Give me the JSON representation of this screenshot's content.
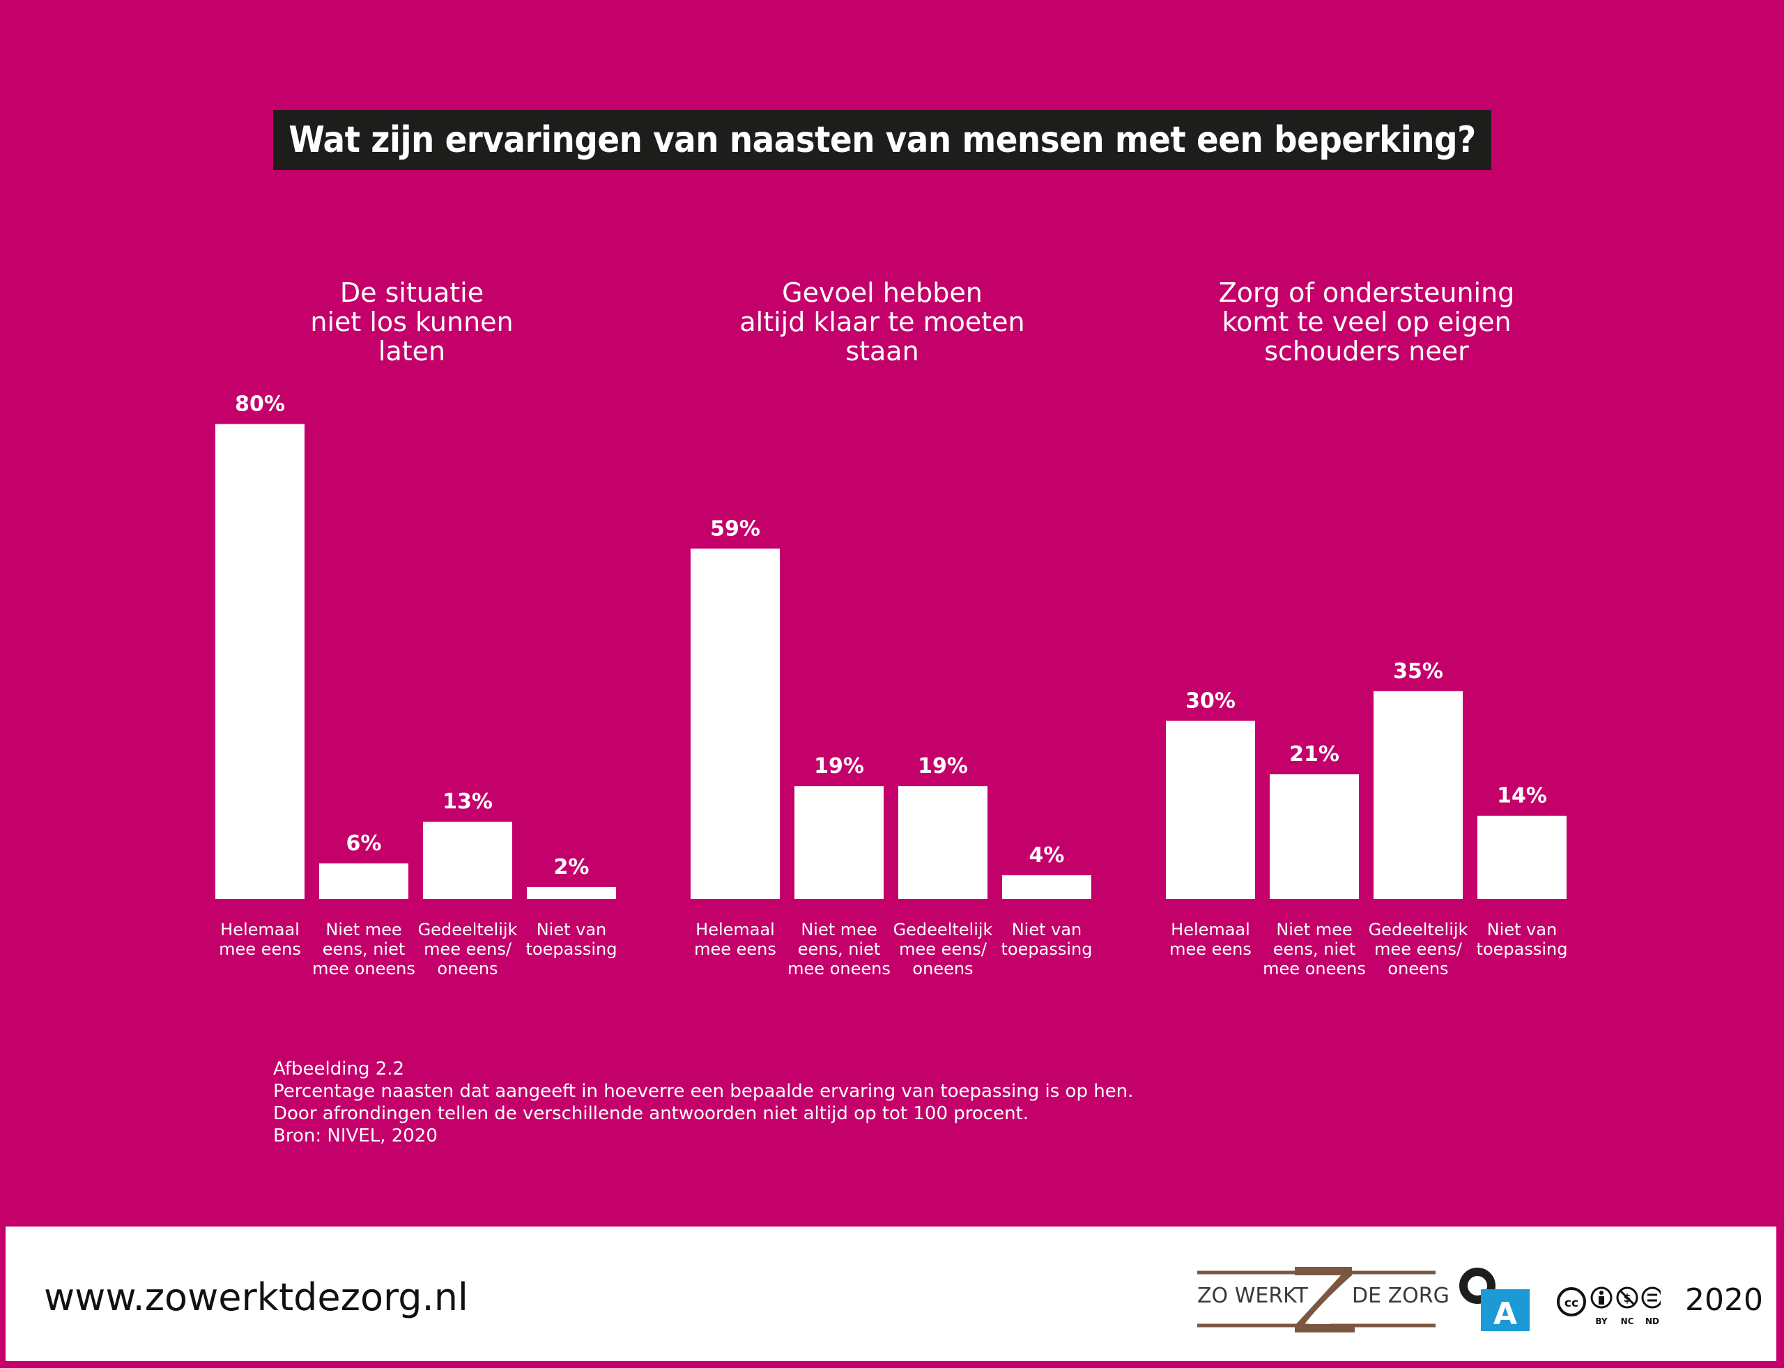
{
  "title": "Wat zijn ervaringen van naasten van mensen met een beperking?",
  "chart_data": [
    {
      "type": "bar",
      "title": [
        "De situatie",
        "niet los kunnen",
        "laten"
      ],
      "categories": [
        [
          "Helemaal",
          "mee eens"
        ],
        [
          "Niet mee",
          "eens, niet",
          "mee oneens"
        ],
        [
          "Gedeeltelijk",
          "mee eens/",
          "oneens"
        ],
        [
          "Niet van",
          "toepassing"
        ]
      ],
      "values": [
        80,
        6,
        13,
        2
      ],
      "labels": [
        "80%",
        "6%",
        "13%",
        "2%"
      ],
      "ylim": [
        0,
        80
      ]
    },
    {
      "type": "bar",
      "title": [
        "Gevoel hebben",
        "altijd klaar te moeten",
        "staan"
      ],
      "categories": [
        [
          "Helemaal",
          "mee eens"
        ],
        [
          "Niet mee",
          "eens, niet",
          "mee oneens"
        ],
        [
          "Gedeeltelijk",
          "mee eens/",
          "oneens"
        ],
        [
          "Niet van",
          "toepassing"
        ]
      ],
      "values": [
        59,
        19,
        19,
        4
      ],
      "labels": [
        "59%",
        "19%",
        "19%",
        "4%"
      ],
      "ylim": [
        0,
        80
      ]
    },
    {
      "type": "bar",
      "title": [
        "Zorg of ondersteuning",
        "komt te veel op eigen",
        "schouders neer"
      ],
      "categories": [
        [
          "Helemaal",
          "mee eens"
        ],
        [
          "Niet mee",
          "eens, niet",
          "mee oneens"
        ],
        [
          "Gedeeltelijk",
          "mee eens/",
          "oneens"
        ],
        [
          "Niet van",
          "toepassing"
        ]
      ],
      "values": [
        30,
        21,
        35,
        14
      ],
      "labels": [
        "30%",
        "21%",
        "35%",
        "14%"
      ],
      "ylim": [
        0,
        80
      ]
    }
  ],
  "caption": {
    "line1": "Afbeelding 2.2",
    "line2": "Percentage naasten dat aangeeft in hoeverre een bepaalde ervaring van toepassing is op hen.",
    "line3": "Door afrondingen tellen de verschillende antwoorden niet altijd op tot 100 procent.",
    "line4": "Bron: NIVEL, 2020"
  },
  "footer": {
    "url": "www.zowerktdezorg.nl",
    "brand_left": "ZO WERKT",
    "brand_right": "DE ZORG",
    "oa_letter": "A",
    "cc_labels": [
      "BY",
      "NC",
      "ND"
    ],
    "year": "2020"
  },
  "colors": {
    "background": "#c4006a",
    "bar": "#ffffff",
    "title_bg": "#1d1d1b",
    "brand_brown": "#7b5742",
    "oa_blue": "#1c9ad6"
  }
}
